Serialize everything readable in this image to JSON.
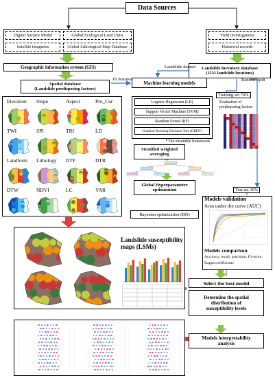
{
  "title": "Data Sources",
  "sources_left": [
    "Digital Surface Model",
    "Global Ecological Land Units",
    "Satellite imageries",
    "Global Lithological Map Database"
  ],
  "sources_right": [
    "Field investigations",
    "Historical records"
  ],
  "gis": "Geographic information system (GIS)",
  "landslide_dataset": "Landslide dataset",
  "inventory": {
    "line1": "Landslide inventory database",
    "line2": "(1531 landslide locations)"
  },
  "spatial_db": {
    "line1": "Spatial database",
    "line2": "(Landslide predisposing factors)"
  },
  "features_label": "16 features",
  "ml_models": "Machine learning models",
  "random_split": "Random split",
  "training_set": "Training set 70%",
  "models": [
    "Logistic Regression (LR)",
    "Support Vector Machine (SVM)",
    "Random Forest (RF)",
    "Gradient Boosting Decision Tree (GBDT)"
  ],
  "evaluation": {
    "line1": "Evaluation of",
    "line2": "predisposing factors"
  },
  "ensemble": "The ensemble framework",
  "stratified": {
    "line1": "Stratified weighted",
    "line2": "averaging"
  },
  "factors": [
    "Elevation",
    "Slope",
    "Aspect",
    "Pro_Cur",
    "TWI",
    "SPI",
    "TRI",
    "LD",
    "Landform",
    "Lithology",
    "DTF",
    "DTR",
    "DTW",
    "NDVI",
    "LC",
    "YAR"
  ],
  "hyper": {
    "line1": "Global Hyperparameter",
    "line2": "optimization"
  },
  "bayesian": "Bayesian optimization (BO)",
  "test_set": "Test set 30%",
  "validation": "Models validation",
  "auc": "Area under the curve (AUC)",
  "lsm": {
    "line1": "Landslide susceptibility",
    "line2": "maps (LSMs)"
  },
  "comparison": {
    "title": "Models comparison",
    "line1": "Accuracy, recall, precision, F1-score,",
    "line2": "Kappa coefficients"
  },
  "best_model": "Select the best model",
  "spatial_dist": {
    "line1": "Determine the spatial",
    "line2": "distribution of",
    "line3": "susceptibility levels"
  },
  "interpret": {
    "line1": "Models interpretability",
    "line2": "analysis"
  },
  "colors": {
    "green_arrow": "#8bc34a",
    "blue_arrow": "#3b78c7",
    "red_arrow": "#e53935"
  }
}
